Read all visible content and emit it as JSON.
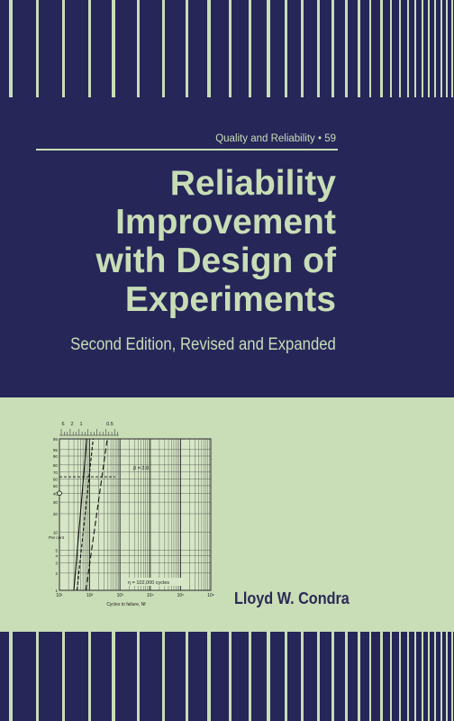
{
  "series": {
    "label": "Quality and Reliability • 59"
  },
  "title": {
    "lines": [
      "Reliability",
      "Improvement",
      "with Design of",
      "Experiments"
    ]
  },
  "subtitle": "Second Edition, Revised and Expanded",
  "author": "Lloyd W. Condra",
  "colors": {
    "navy": "#262659",
    "pale_green": "#c9ddb7",
    "ink": "#2a2a55"
  },
  "chart_data": {
    "type": "line",
    "title": "",
    "xlabel": "Cycles to failure, Nf",
    "ylabel": "Per cent",
    "x_scale": "log",
    "xlim": [
      10,
      1000000
    ],
    "x_ticks": [
      "10¹",
      "10²",
      "10³",
      "10⁴",
      "10⁵",
      "10⁶"
    ],
    "y_scale": "weibull",
    "y_ticks": [
      "1",
      "2",
      "3",
      "4",
      "5",
      "10",
      "20",
      "30",
      "40",
      "50",
      "60",
      "70",
      "80",
      "90",
      "95",
      "99"
    ],
    "top_scale_labels": [
      "6",
      "2",
      "1",
      "0.5"
    ],
    "annotations": [
      "β = 2.0",
      "η = 102,000 cycles"
    ],
    "grid": true,
    "series": [
      {
        "style": "solid",
        "x": [
          30,
          80
        ],
        "y": [
          1,
          99
        ]
      },
      {
        "style": "dashed",
        "x": [
          38,
          130
        ],
        "y": [
          1,
          99
        ]
      },
      {
        "style": "dashed-long",
        "x": [
          75,
          380
        ],
        "y": [
          1,
          99
        ]
      }
    ],
    "reference_line_percent": 63
  }
}
